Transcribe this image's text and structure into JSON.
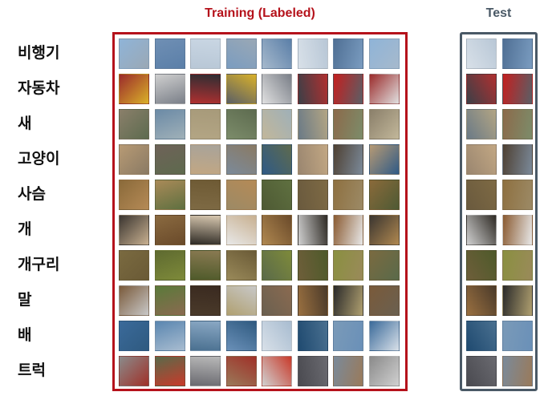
{
  "training_title": "Training (Labeled)",
  "test_title": "Test",
  "colors": {
    "training_accent": "#b5121b",
    "test_accent": "#4a5966",
    "label_text": "#111111"
  },
  "classes": [
    {
      "label": "비행기",
      "train_images": 8,
      "test_images": 2,
      "palette": [
        "#8fb4d8",
        "#6f8fb4",
        "#c9d6e3",
        "#9aa8b5",
        "#5b7fa8",
        "#b8c7d6",
        "#7a9cc0",
        "#a6b9cc",
        "#d8e0e8",
        "#4f6f94"
      ]
    },
    {
      "label": "자동차",
      "train_images": 8,
      "test_images": 2,
      "palette": [
        "#9b2b2b",
        "#cfcfcf",
        "#2d2d33",
        "#d9b12a",
        "#7a7f88",
        "#b03030",
        "#5a5f66",
        "#e0e0e0",
        "#3b3f47",
        "#c41f1f"
      ]
    },
    {
      "label": "새",
      "train_images": 8,
      "test_images": 2,
      "palette": [
        "#8a7f6a",
        "#6b8aa6",
        "#a79a7a",
        "#5d6b4f",
        "#9fb0b8",
        "#b3a584",
        "#7c8c6a",
        "#c2b79a",
        "#6a7a86",
        "#8c6a4a"
      ]
    },
    {
      "label": "고양이",
      "train_images": 8,
      "test_images": 2,
      "palette": [
        "#b79a74",
        "#6e6258",
        "#a8a39a",
        "#8a7a64",
        "#5e6a4e",
        "#c2a783",
        "#7b8a9a",
        "#2f5a86",
        "#9a8670",
        "#4e4032"
      ]
    },
    {
      "label": "사슴",
      "train_images": 8,
      "test_images": 2,
      "palette": [
        "#8a6a3a",
        "#a98a58",
        "#6e5a34",
        "#b58a56",
        "#5f7040",
        "#7e6a44",
        "#9c8a66",
        "#4e5a34",
        "#6a5a3e",
        "#8e7040"
      ]
    },
    {
      "label": "개",
      "train_images": 8,
      "test_images": 2,
      "palette": [
        "#3a3530",
        "#8a6a40",
        "#d8c8b0",
        "#c8b090",
        "#6a4a2a",
        "#2e2a24",
        "#e8e8e8",
        "#b08850",
        "#d0d0d0",
        "#8a5a30"
      ]
    },
    {
      "label": "개구리",
      "train_images": 8,
      "test_images": 2,
      "palette": [
        "#7a6a40",
        "#5e6a30",
        "#8a7a52",
        "#6a5a36",
        "#7e8a3a",
        "#4e5a2a",
        "#9a8a5a",
        "#5a6a4a",
        "#6e5e3a",
        "#8a9040"
      ]
    },
    {
      "label": "말",
      "train_images": 8,
      "test_images": 2,
      "palette": [
        "#7a5a3a",
        "#5a7a3a",
        "#3a2a20",
        "#c8c8c8",
        "#8a6a50",
        "#4a3a2a",
        "#b0a070",
        "#6a6050",
        "#9a7040",
        "#2a2a2a"
      ]
    },
    {
      "label": "배",
      "train_images": 8,
      "test_images": 2,
      "palette": [
        "#3a6a9a",
        "#5a86b0",
        "#8aa8c4",
        "#2f5a80",
        "#a8bcd0",
        "#4a7090",
        "#6a90b8",
        "#d8e0e8",
        "#1f4a70",
        "#7a9ab8"
      ]
    },
    {
      "label": "트럭",
      "train_images": 8,
      "test_images": 2,
      "palette": [
        "#8a8a8a",
        "#5a6a4a",
        "#b8b8b8",
        "#a03028",
        "#c83a2a",
        "#6a6a70",
        "#9a7a5a",
        "#d0d0d0",
        "#4a4a50",
        "#7a8a9a"
      ]
    }
  ]
}
